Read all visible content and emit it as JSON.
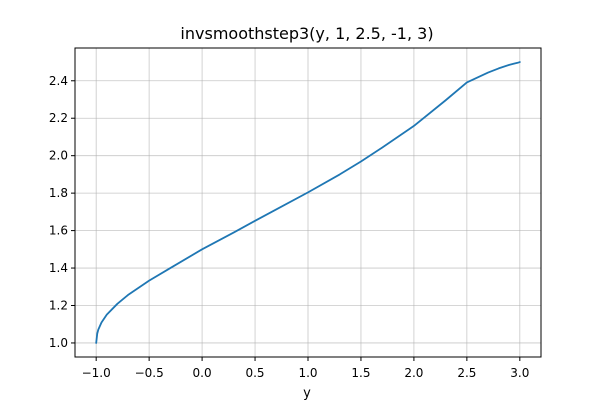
{
  "chart_data": {
    "type": "line",
    "title": "invsmoothstep3(y, 1, 2.5, -1, 3)",
    "xlabel": "y",
    "ylabel": "",
    "xlim": [
      -1.2,
      3.2
    ],
    "ylim": [
      0.925,
      2.575
    ],
    "grid": true,
    "legend": "none",
    "x_ticks": [
      -1.0,
      -0.5,
      0.0,
      0.5,
      1.0,
      1.5,
      2.0,
      2.5,
      3.0
    ],
    "x_tick_labels": [
      "−1.0",
      "−0.5",
      "0.0",
      "0.5",
      "1.0",
      "1.5",
      "2.0",
      "2.5",
      "3.0"
    ],
    "y_ticks": [
      1.0,
      1.2,
      1.4,
      1.6,
      1.8,
      2.0,
      2.2,
      2.4
    ],
    "y_tick_labels": [
      "1.0",
      "1.2",
      "1.4",
      "1.6",
      "1.8",
      "2.0",
      "2.2",
      "2.4"
    ],
    "series": [
      {
        "color": "#1f77b4",
        "x": [
          -1.0,
          -0.99,
          -0.98,
          -0.95,
          -0.9,
          -0.8,
          -0.7,
          -0.5,
          -0.3,
          0.0,
          0.3,
          0.5,
          0.7,
          1.0,
          1.3,
          1.5,
          1.7,
          2.0,
          2.3,
          2.5,
          2.7,
          2.8,
          2.9,
          2.95,
          2.98,
          2.99,
          3.0
        ],
        "y": [
          1.0,
          1.05,
          1.071,
          1.109,
          1.151,
          1.209,
          1.256,
          1.333,
          1.4,
          1.5,
          1.59,
          1.652,
          1.713,
          1.804,
          1.9,
          1.969,
          2.043,
          2.159,
          2.296,
          2.391,
          2.444,
          2.466,
          2.485,
          2.492,
          2.496,
          2.498,
          2.5
        ]
      }
    ]
  }
}
